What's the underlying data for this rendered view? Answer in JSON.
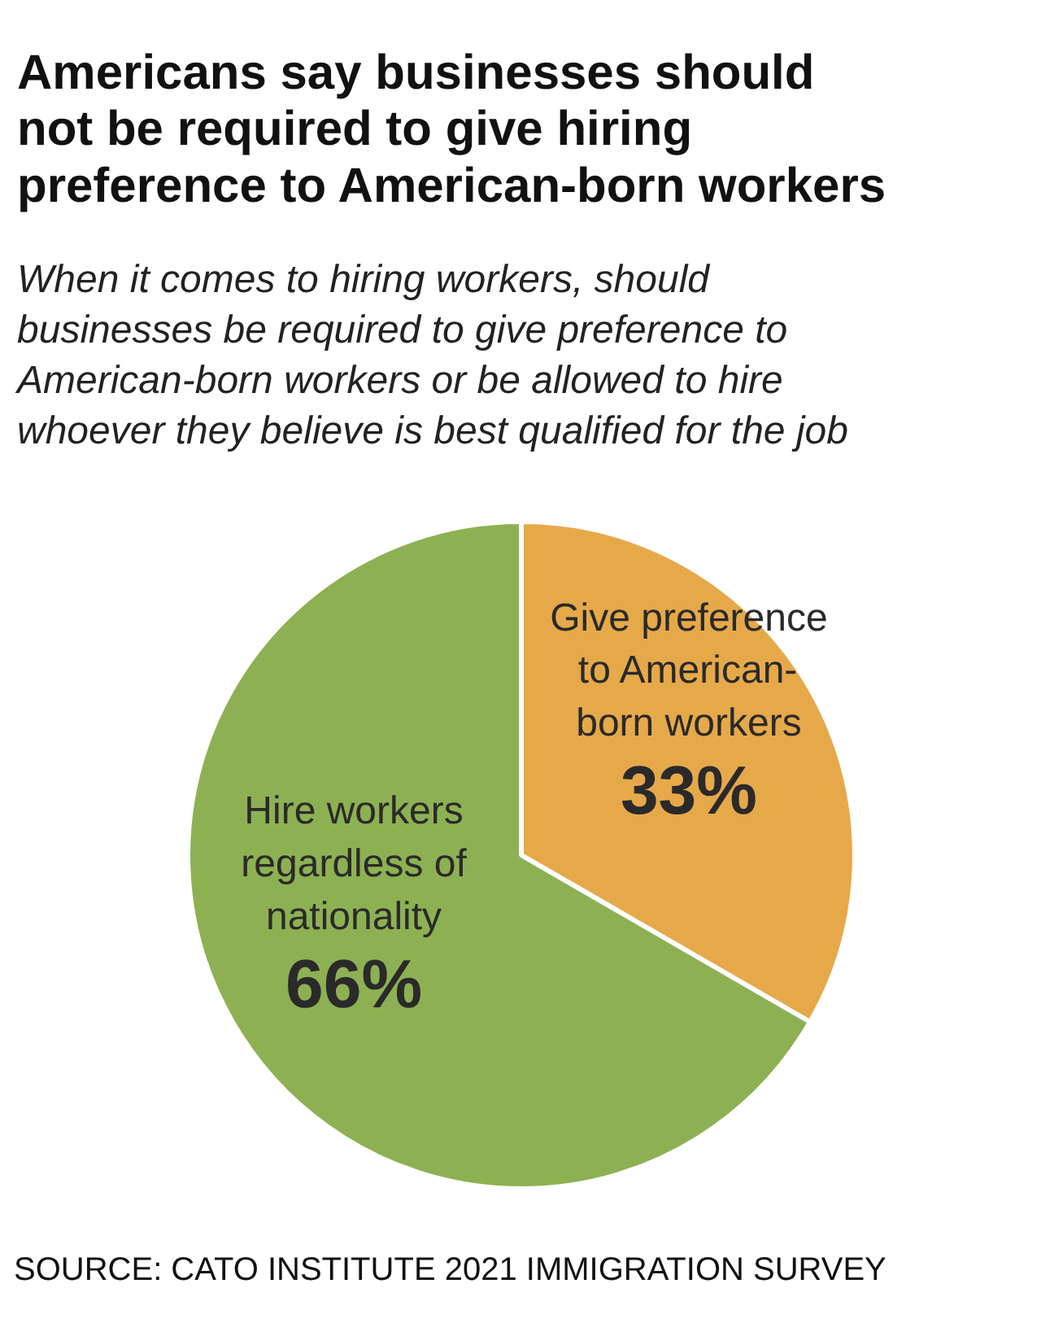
{
  "chart_data": {
    "type": "pie",
    "title": "Americans say businesses should\nnot be required to give hiring\npreference to American-born workers",
    "subtitle": "When it comes to hiring workers, should\nbusinesses be required to give preference to\nAmerican-born workers or be allowed to hire\nwhoever they believe is best qualified for the job",
    "categories": [
      "Give preference\nto American-\nborn workers",
      "Hire workers\nregardless of\nnationality"
    ],
    "values": [
      33,
      66
    ],
    "colors": [
      "#e6a94a",
      "#8db152"
    ],
    "value_labels": [
      "33%",
      "66%"
    ],
    "annotations": [
      "SOURCE: CATO INSTITUTE 2021 IMMIGRATION SURVEY"
    ]
  }
}
